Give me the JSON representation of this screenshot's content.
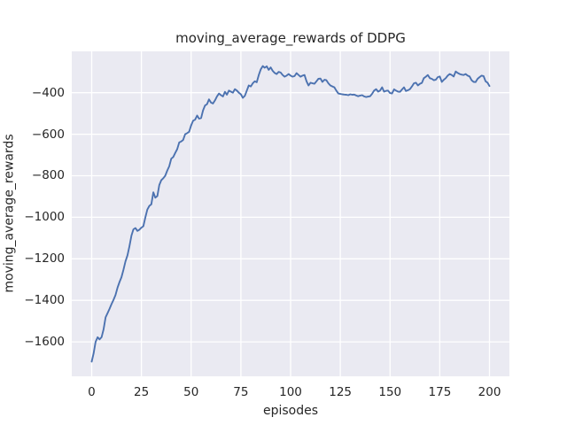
{
  "figure": {
    "background": "#ffffff",
    "axes_background": "#eaeaf2",
    "grid_color": "#ffffff",
    "text_color": "#262626"
  },
  "chart_data": {
    "type": "line",
    "title": "moving_average_rewards of DDPG",
    "xlabel": "episodes",
    "ylabel": "moving_average_rewards",
    "legend_position": "none",
    "grid": true,
    "line_color": "#4c72b0",
    "x_start": 0,
    "x_step": 1,
    "xlim": [
      -10,
      210
    ],
    "ylim": [
      -1766,
      -201
    ],
    "xticks": [
      0,
      25,
      50,
      75,
      100,
      125,
      150,
      175,
      200
    ],
    "xtick_labels": [
      "0",
      "25",
      "50",
      "75",
      "100",
      "125",
      "150",
      "175",
      "200"
    ],
    "yticks": [
      -1600,
      -1400,
      -1200,
      -1000,
      -800,
      -600,
      -400
    ],
    "ytick_labels": [
      "−1600",
      "−1400",
      "−1200",
      "−1000",
      "−800",
      "−600",
      "−400"
    ],
    "values": [
      -1695,
      -1655,
      -1600,
      -1578,
      -1588,
      -1577,
      -1540,
      -1482,
      -1462,
      -1440,
      -1418,
      -1397,
      -1374,
      -1340,
      -1312,
      -1289,
      -1252,
      -1213,
      -1183,
      -1140,
      -1088,
      -1058,
      -1052,
      -1066,
      -1060,
      -1050,
      -1043,
      -1000,
      -963,
      -945,
      -938,
      -880,
      -906,
      -898,
      -845,
      -822,
      -812,
      -800,
      -775,
      -755,
      -718,
      -710,
      -690,
      -672,
      -640,
      -635,
      -628,
      -600,
      -595,
      -588,
      -558,
      -535,
      -530,
      -510,
      -525,
      -522,
      -485,
      -462,
      -455,
      -432,
      -448,
      -452,
      -437,
      -418,
      -404,
      -412,
      -418,
      -396,
      -410,
      -390,
      -395,
      -400,
      -383,
      -390,
      -400,
      -408,
      -425,
      -415,
      -390,
      -365,
      -370,
      -355,
      -345,
      -350,
      -315,
      -288,
      -272,
      -280,
      -273,
      -290,
      -278,
      -295,
      -305,
      -310,
      -300,
      -303,
      -315,
      -323,
      -318,
      -310,
      -318,
      -323,
      -320,
      -306,
      -315,
      -323,
      -318,
      -315,
      -345,
      -365,
      -352,
      -355,
      -357,
      -345,
      -333,
      -332,
      -348,
      -338,
      -340,
      -355,
      -365,
      -370,
      -374,
      -390,
      -404,
      -406,
      -408,
      -409,
      -410,
      -412,
      -408,
      -410,
      -409,
      -414,
      -417,
      -414,
      -412,
      -418,
      -421,
      -419,
      -417,
      -405,
      -390,
      -383,
      -395,
      -390,
      -374,
      -395,
      -391,
      -390,
      -402,
      -404,
      -384,
      -390,
      -395,
      -396,
      -385,
      -374,
      -392,
      -388,
      -383,
      -370,
      -355,
      -352,
      -365,
      -357,
      -353,
      -330,
      -323,
      -315,
      -330,
      -333,
      -340,
      -338,
      -325,
      -322,
      -348,
      -338,
      -330,
      -318,
      -310,
      -315,
      -322,
      -298,
      -305,
      -310,
      -313,
      -315,
      -310,
      -318,
      -322,
      -340,
      -348,
      -349,
      -333,
      -325,
      -318,
      -320,
      -345,
      -352,
      -368
    ]
  }
}
